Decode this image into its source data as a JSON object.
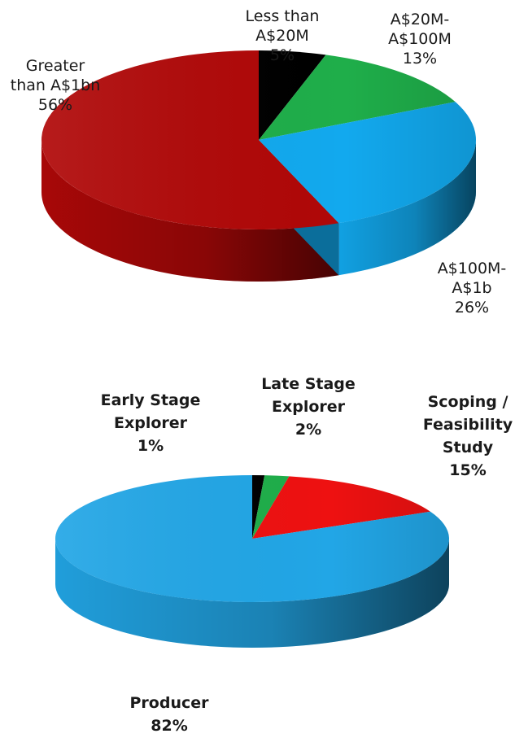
{
  "chart_data": [
    {
      "type": "pie",
      "variant": "3d",
      "title": "",
      "slices": [
        {
          "label_lines": [
            "Less than",
            "A$20M",
            "5%"
          ],
          "value": 5,
          "color": "#000000"
        },
        {
          "label_lines": [
            "A$20M-",
            "A$100M",
            "13%"
          ],
          "value": 13,
          "color": "#1fae4a"
        },
        {
          "label_lines": [
            "A$100M-",
            "A$1b",
            "26%"
          ],
          "value": 26,
          "color": "#12a9ee"
        },
        {
          "label_lines": [
            "Greater",
            "than A$1bn",
            "56%"
          ],
          "value": 56,
          "color": "#b00808"
        }
      ]
    },
    {
      "type": "pie",
      "variant": "3d",
      "title": "",
      "slices": [
        {
          "label_lines": [
            "Early Stage",
            "Explorer",
            "1%"
          ],
          "value": 1,
          "color": "#000000"
        },
        {
          "label_lines": [
            "Late Stage",
            "Explorer",
            "2%"
          ],
          "value": 2,
          "color": "#1fae4a"
        },
        {
          "label_lines": [
            "Scoping /",
            "Feasibility",
            "Study",
            "15%"
          ],
          "value": 15,
          "color": "#ee1111"
        },
        {
          "label_lines": [
            "Producer",
            "82%"
          ],
          "value": 82,
          "color": "#22a6e6"
        }
      ]
    }
  ]
}
